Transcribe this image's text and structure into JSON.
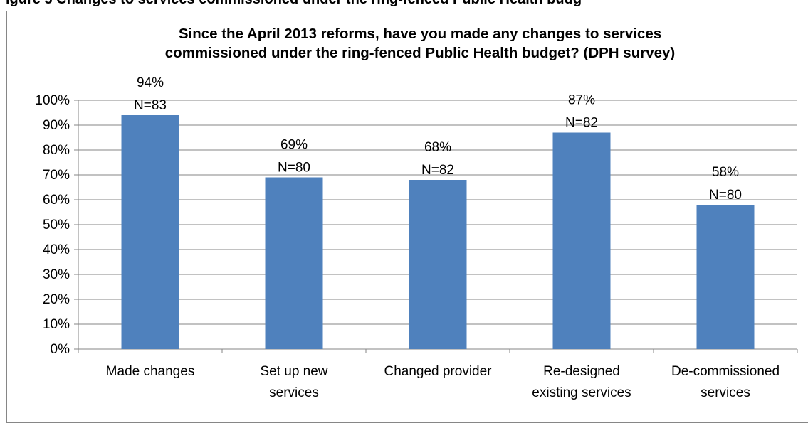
{
  "caption": "igure 3 Changes to services commissioned under the ring-fenced Public Health budg",
  "chart_data": {
    "type": "bar",
    "title_lines": [
      "Since the April 2013 reforms, have you made any changes to services",
      "commissioned under the ring-fenced Public Health budget? (DPH survey)"
    ],
    "categories": [
      [
        "Made changes"
      ],
      [
        "Set up new",
        "services"
      ],
      [
        "Changed provider"
      ],
      [
        "Re-designed",
        "existing services"
      ],
      [
        "De-commissioned",
        "services"
      ]
    ],
    "values": [
      94,
      69,
      68,
      87,
      58
    ],
    "value_labels": [
      "94%",
      "69%",
      "68%",
      "87%",
      "58%"
    ],
    "n_labels": [
      "N=83",
      "N=80",
      "N=82",
      "N=82",
      "N=80"
    ],
    "yticks": [
      "0%",
      "10%",
      "20%",
      "30%",
      "40%",
      "50%",
      "60%",
      "70%",
      "80%",
      "90%",
      "100%"
    ],
    "ylim": [
      0,
      100
    ],
    "bar_color": "#4F81BD",
    "grid": true,
    "legend": "none"
  }
}
